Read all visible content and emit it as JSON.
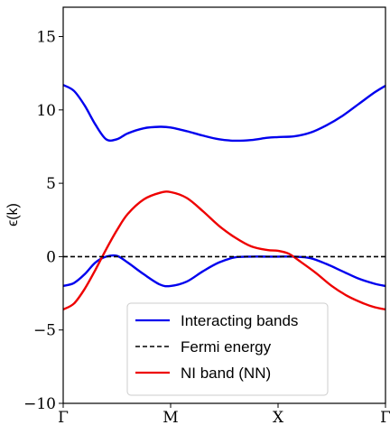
{
  "chart_data": {
    "type": "line",
    "ylabel": "ϵ(k)",
    "xlabel": "",
    "ylim": [
      -10,
      17
    ],
    "xticks": [
      {
        "x": 0,
        "label": "Γ"
      },
      {
        "x": 1,
        "label": "M"
      },
      {
        "x": 2,
        "label": "X"
      },
      {
        "x": 3,
        "label": "Γ"
      }
    ],
    "yticks": [
      -10,
      -5,
      0,
      5,
      10,
      15
    ],
    "grid": false,
    "legend_position": "lower-center",
    "series": [
      {
        "name": "Interacting bands",
        "color": "#0000ee",
        "style": "solid",
        "points": [
          [
            0,
            11.7
          ],
          [
            0.1,
            11.3
          ],
          [
            0.2,
            10.3
          ],
          [
            0.3,
            9.0
          ],
          [
            0.4,
            8.0
          ],
          [
            0.5,
            8.0
          ],
          [
            0.6,
            8.4
          ],
          [
            0.75,
            8.75
          ],
          [
            0.9,
            8.85
          ],
          [
            1.0,
            8.8
          ],
          [
            1.15,
            8.55
          ],
          [
            1.3,
            8.25
          ],
          [
            1.45,
            8.0
          ],
          [
            1.6,
            7.9
          ],
          [
            1.75,
            7.95
          ],
          [
            1.9,
            8.1
          ],
          [
            2.0,
            8.15
          ],
          [
            2.15,
            8.2
          ],
          [
            2.3,
            8.45
          ],
          [
            2.45,
            8.95
          ],
          [
            2.6,
            9.6
          ],
          [
            2.75,
            10.4
          ],
          [
            2.9,
            11.2
          ],
          [
            3.0,
            11.65
          ]
        ]
      },
      {
        "name": "Interacting bands",
        "color": "#0000ee",
        "style": "solid",
        "points": [
          [
            0,
            -2.0
          ],
          [
            0.1,
            -1.8
          ],
          [
            0.2,
            -1.2
          ],
          [
            0.3,
            -0.4
          ],
          [
            0.4,
            0.0
          ],
          [
            0.5,
            0.05
          ],
          [
            0.6,
            -0.4
          ],
          [
            0.75,
            -1.2
          ],
          [
            0.9,
            -1.9
          ],
          [
            1.0,
            -2.0
          ],
          [
            1.15,
            -1.7
          ],
          [
            1.3,
            -1.0
          ],
          [
            1.45,
            -0.4
          ],
          [
            1.6,
            -0.05
          ],
          [
            1.75,
            0.0
          ],
          [
            1.9,
            0.0
          ],
          [
            2.0,
            0.0
          ],
          [
            2.15,
            0.0
          ],
          [
            2.3,
            -0.1
          ],
          [
            2.45,
            -0.5
          ],
          [
            2.6,
            -1.0
          ],
          [
            2.75,
            -1.5
          ],
          [
            2.9,
            -1.85
          ],
          [
            3.0,
            -2.0
          ]
        ]
      },
      {
        "name": "NI band (NN)",
        "color": "#ee0000",
        "style": "solid",
        "points": [
          [
            0,
            -3.6
          ],
          [
            0.1,
            -3.2
          ],
          [
            0.2,
            -2.2
          ],
          [
            0.3,
            -0.9
          ],
          [
            0.4,
            0.5
          ],
          [
            0.5,
            1.8
          ],
          [
            0.6,
            2.9
          ],
          [
            0.75,
            3.9
          ],
          [
            0.9,
            4.35
          ],
          [
            1.0,
            4.4
          ],
          [
            1.15,
            4.0
          ],
          [
            1.3,
            3.1
          ],
          [
            1.45,
            2.1
          ],
          [
            1.6,
            1.3
          ],
          [
            1.75,
            0.7
          ],
          [
            1.9,
            0.45
          ],
          [
            2.0,
            0.4
          ],
          [
            2.1,
            0.2
          ],
          [
            2.2,
            -0.3
          ],
          [
            2.35,
            -1.1
          ],
          [
            2.5,
            -2.0
          ],
          [
            2.65,
            -2.7
          ],
          [
            2.8,
            -3.2
          ],
          [
            2.9,
            -3.45
          ],
          [
            3.0,
            -3.6
          ]
        ]
      },
      {
        "name": "Fermi energy",
        "color": "#000000",
        "style": "dashed",
        "points": [
          [
            0,
            0
          ],
          [
            3,
            0
          ]
        ]
      }
    ],
    "legend": [
      {
        "label": "Interacting bands",
        "color": "#0000ee",
        "style": "solid"
      },
      {
        "label": "Fermi energy",
        "color": "#000000",
        "style": "dashed"
      },
      {
        "label": "NI band (NN)",
        "color": "#ee0000",
        "style": "solid"
      }
    ]
  }
}
